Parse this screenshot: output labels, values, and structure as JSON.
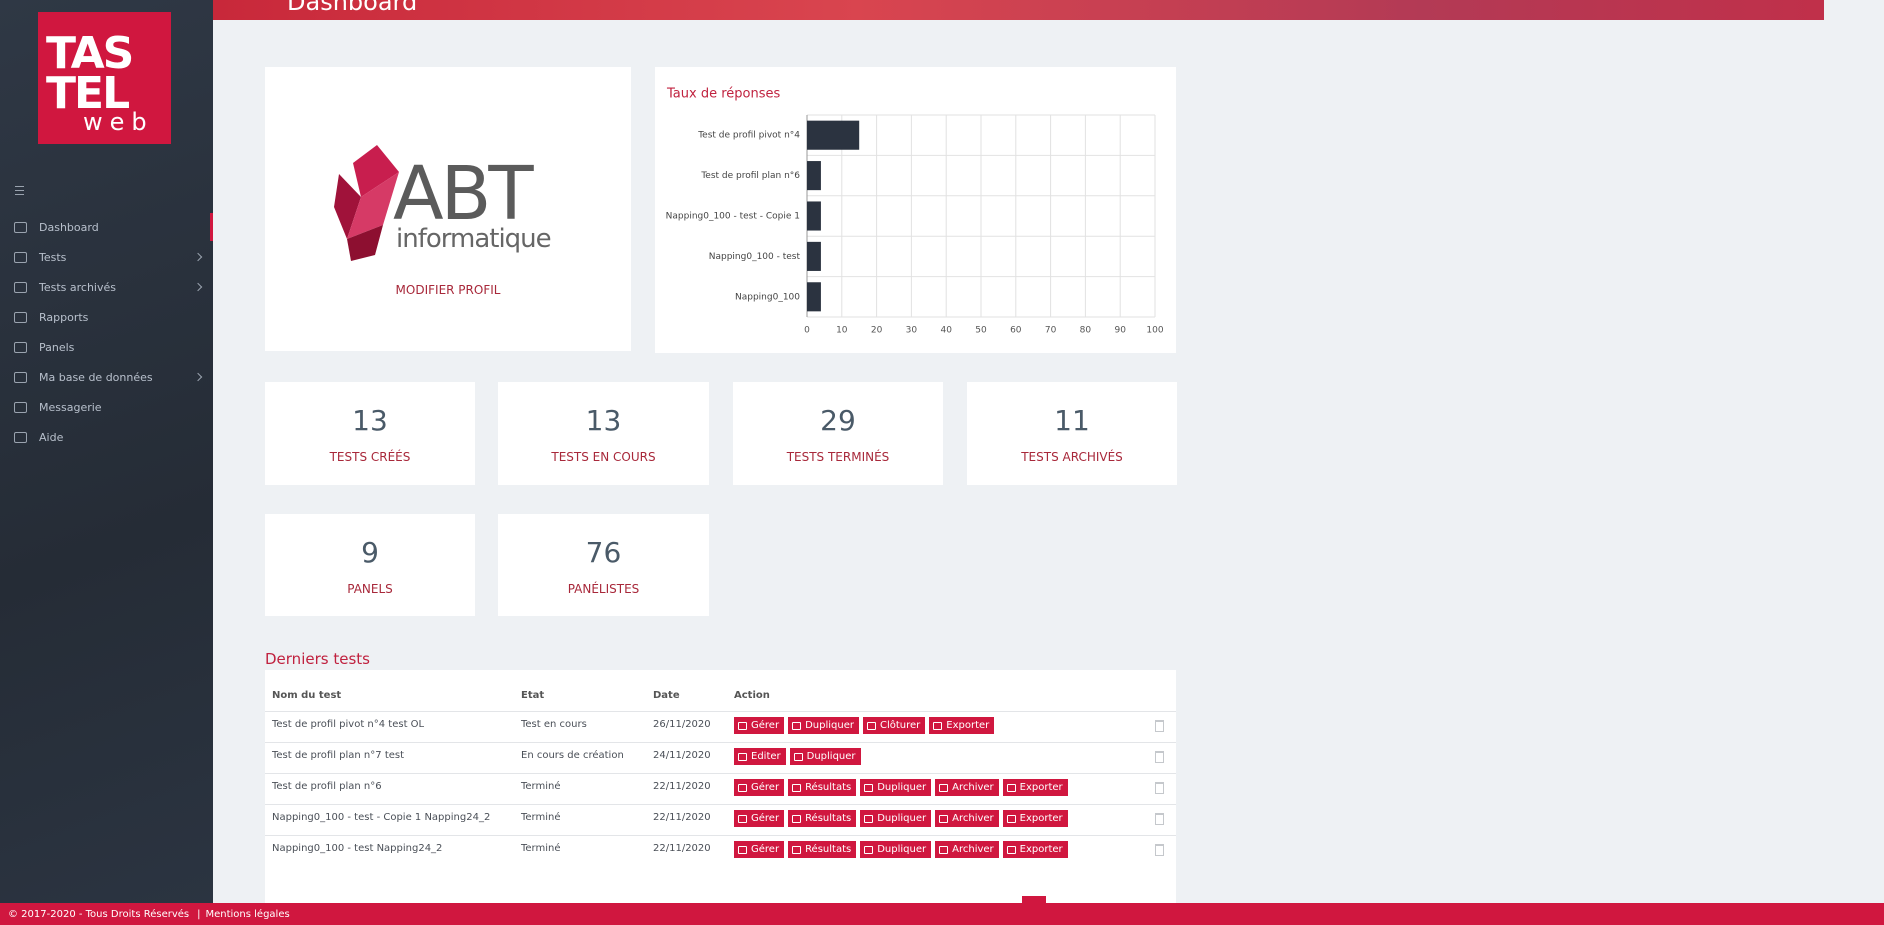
{
  "header": {
    "title": "Dashboard"
  },
  "sidebar": {
    "logo": {
      "line1": "TAS",
      "line2": "TEL",
      "line3": "web"
    },
    "menu": [
      {
        "label": "Dashboard",
        "active": true
      },
      {
        "label": "Tests",
        "has_submenu": true
      },
      {
        "label": "Tests archivés",
        "has_submenu": true
      },
      {
        "label": "Rapports"
      },
      {
        "label": "Panels"
      },
      {
        "label": "Ma base de données",
        "has_submenu": true
      },
      {
        "label": "Messagerie"
      },
      {
        "label": "Aide"
      }
    ]
  },
  "profile": {
    "logo_text": "ABT",
    "logo_subtext": "informatique",
    "link": "MODIFIER PROFIL"
  },
  "chart_data": {
    "type": "hbar",
    "title": "Taux de réponses",
    "categories": [
      "Test de profil pivot n°4",
      "Test de profil plan n°6",
      "Napping0_100 - test - Copie 1",
      "Napping0_100 - test",
      "Napping0_100"
    ],
    "values": [
      15,
      4,
      4,
      4,
      4
    ],
    "color": "#2b3340",
    "xlim": [
      0,
      100
    ],
    "xticks": [
      0,
      10,
      20,
      30,
      40,
      50,
      60,
      70,
      80,
      90,
      100
    ],
    "grid": true
  },
  "stats": [
    {
      "value": 13,
      "label": "TESTS CRÉÉS"
    },
    {
      "value": 13,
      "label": "TESTS EN COURS"
    },
    {
      "value": 29,
      "label": "TESTS TERMINÉS"
    },
    {
      "value": 11,
      "label": "TESTS ARCHIVÉS"
    },
    {
      "value": 9,
      "label": "PANELS"
    },
    {
      "value": 76,
      "label": "PANÉLISTES"
    }
  ],
  "table": {
    "title": "Derniers tests",
    "columns": [
      "Nom du test",
      "Etat",
      "Date",
      "Action"
    ],
    "rows": [
      {
        "name": "Test de profil pivot n°4 test OL",
        "state": "Test en cours",
        "date": "26/11/2020",
        "actions": [
          "Gérer",
          "Dupliquer",
          "Clôturer",
          "Exporter"
        ]
      },
      {
        "name": "Test de profil plan n°7 test",
        "state": "En cours de création",
        "date": "24/11/2020",
        "actions": [
          "Editer",
          "Dupliquer"
        ]
      },
      {
        "name": "Test de profil plan n°6",
        "state": "Terminé",
        "date": "22/11/2020",
        "actions": [
          "Gérer",
          "Résultats",
          "Dupliquer",
          "Archiver",
          "Exporter"
        ]
      },
      {
        "name": "Napping0_100 - test - Copie 1 Napping24_2",
        "state": "Terminé",
        "date": "22/11/2020",
        "actions": [
          "Gérer",
          "Résultats",
          "Dupliquer",
          "Archiver",
          "Exporter"
        ]
      },
      {
        "name": "Napping0_100 - test Napping24_2",
        "state": "Terminé",
        "date": "22/11/2020",
        "actions": [
          "Gérer",
          "Résultats",
          "Dupliquer",
          "Archiver",
          "Exporter"
        ]
      }
    ]
  },
  "footer": {
    "copyright": "© 2017-2020 - Tous Droits Réservés",
    "separator": "|",
    "link": "Mentions légales"
  }
}
